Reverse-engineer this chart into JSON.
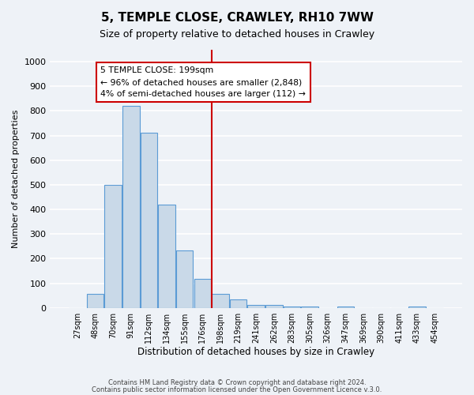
{
  "title": "5, TEMPLE CLOSE, CRAWLEY, RH10 7WW",
  "subtitle": "Size of property relative to detached houses in Crawley",
  "xlabel": "Distribution of detached houses by size in Crawley",
  "ylabel": "Number of detached properties",
  "footer_lines": [
    "Contains HM Land Registry data © Crown copyright and database right 2024.",
    "Contains public sector information licensed under the Open Government Licence v.3.0."
  ],
  "bin_labels": [
    "27sqm",
    "48sqm",
    "70sqm",
    "91sqm",
    "112sqm",
    "134sqm",
    "155sqm",
    "176sqm",
    "198sqm",
    "219sqm",
    "241sqm",
    "262sqm",
    "283sqm",
    "305sqm",
    "326sqm",
    "347sqm",
    "369sqm",
    "390sqm",
    "411sqm",
    "433sqm",
    "454sqm"
  ],
  "bar_values": [
    0,
    57,
    500,
    820,
    710,
    420,
    232,
    118,
    57,
    33,
    13,
    13,
    7,
    7,
    0,
    5,
    0,
    0,
    0,
    5,
    0
  ],
  "bar_color": "#c9d9e8",
  "bar_edge_color": "#5b9bd5",
  "property_line_color": "#cc0000",
  "property_line_idx": 7.5,
  "annotation_title": "5 TEMPLE CLOSE: 199sqm",
  "annotation_line1": "← 96% of detached houses are smaller (2,848)",
  "annotation_line2": "4% of semi-detached houses are larger (112) →",
  "annotation_box_color": "#cc0000",
  "ylim": [
    0,
    1050
  ],
  "yticks": [
    0,
    100,
    200,
    300,
    400,
    500,
    600,
    700,
    800,
    900,
    1000
  ],
  "background_color": "#eef2f7",
  "plot_background_color": "#eef2f7",
  "grid_color": "#ffffff",
  "title_fontsize": 11,
  "subtitle_fontsize": 9
}
